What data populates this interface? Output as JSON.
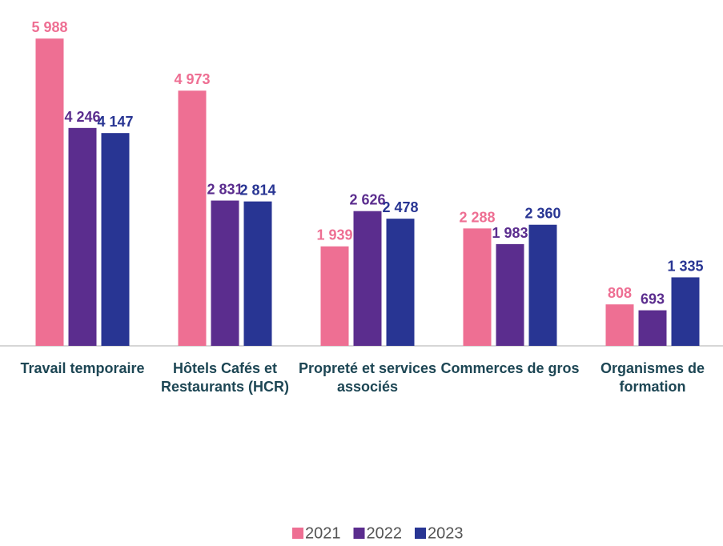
{
  "chart_data": {
    "type": "bar",
    "categories": [
      "Travail temporaire",
      "Hôtels Cafés et Restaurants (HCR)",
      "Propreté et services associés",
      "Commerces de gros",
      "Organismes de formation"
    ],
    "series": [
      {
        "name": "2021",
        "color": "#ee6f93",
        "values": [
          5988,
          4973,
          1939,
          2288,
          808
        ],
        "value_labels": [
          "5 988",
          "4 973",
          "1 939",
          "2 288",
          "808"
        ]
      },
      {
        "name": "2022",
        "color": "#5b2d8e",
        "values": [
          4246,
          2831,
          2626,
          1983,
          693
        ],
        "value_labels": [
          "4 246",
          "2 831",
          "2 626",
          "1 983",
          "693"
        ]
      },
      {
        "name": "2023",
        "color": "#283593",
        "values": [
          4147,
          2814,
          2478,
          2360,
          1335
        ],
        "value_labels": [
          "4 147",
          "2 814",
          "2 478",
          "2 360",
          "1 335"
        ]
      }
    ],
    "ylim": [
      0,
      6000
    ],
    "legend": "bottom"
  }
}
